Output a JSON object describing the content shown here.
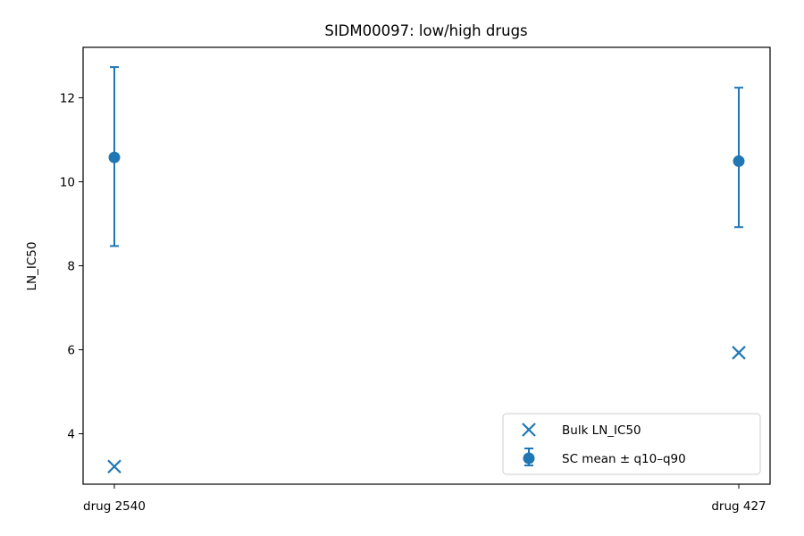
{
  "chart_data": {
    "type": "scatter",
    "title": "SIDM00097: low/high drugs",
    "xlabel": "",
    "ylabel": "LN_IC50",
    "categories": [
      "drug 2540",
      "drug 427"
    ],
    "ylim": [
      2.8,
      13.2
    ],
    "yticks": [
      4,
      6,
      8,
      10,
      12
    ],
    "grid": false,
    "legend_position": "lower-right",
    "color": "#1f77b4",
    "series": [
      {
        "name": "Bulk LN_IC50",
        "marker": "x",
        "values": [
          3.22,
          5.93
        ]
      },
      {
        "name": "SC mean ± q10–q90",
        "marker": "circle-errorbar",
        "values": [
          10.58,
          10.49
        ],
        "lower": [
          8.47,
          8.92
        ],
        "upper": [
          12.73,
          12.24
        ]
      }
    ]
  }
}
